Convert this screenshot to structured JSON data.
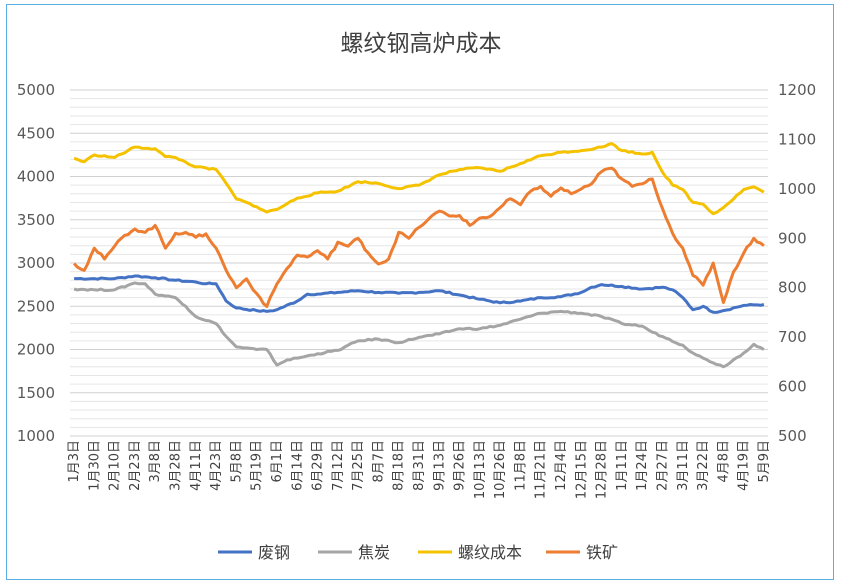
{
  "chart_data": {
    "type": "line",
    "title": "螺纹钢高炉成本",
    "left_axis": {
      "ylim": [
        1000,
        5000
      ],
      "ticks": [
        "5000",
        "4500",
        "4000",
        "3500",
        "3000",
        "2500",
        "2000",
        "1500",
        "1000"
      ]
    },
    "right_axis": {
      "ylim": [
        500,
        1200
      ],
      "ticks": [
        "1200",
        "1100",
        "1000",
        "900",
        "800",
        "700",
        "600",
        "500"
      ]
    },
    "x_labels": [
      "1月3日",
      "1月30日",
      "2月10日",
      "2月23日",
      "3月8日",
      "3月28日",
      "4月11日",
      "4月23日",
      "5月8日",
      "5月19日",
      "6月1日",
      "6月14日",
      "6月29日",
      "7月12日",
      "7月25日",
      "8月7日",
      "8月18日",
      "8月31日",
      "9月13日",
      "9月26日",
      "10月13日",
      "10月26日",
      "11月8日",
      "11月21日",
      "12月4日",
      "12月15日",
      "12月28日",
      "1月11日",
      "1月24日",
      "2月27日",
      "3月11日",
      "3月22日",
      "4月8日",
      "4月19日",
      "5月9日"
    ],
    "legend_position": "bottom",
    "series": [
      {
        "name": "废钢",
        "axis": "left",
        "color": "#4472c4",
        "points": [
          [
            0,
            2820
          ],
          [
            2,
            2820
          ],
          [
            3,
            2850
          ],
          [
            4,
            2830
          ],
          [
            5,
            2800
          ],
          [
            6,
            2780
          ],
          [
            6.5,
            2760
          ],
          [
            7,
            2760
          ],
          [
            7.5,
            2560
          ],
          [
            8,
            2480
          ],
          [
            9,
            2450
          ],
          [
            9.5,
            2440
          ],
          [
            10,
            2460
          ],
          [
            11,
            2560
          ],
          [
            11.5,
            2640
          ],
          [
            12,
            2640
          ],
          [
            13,
            2660
          ],
          [
            14,
            2680
          ],
          [
            15,
            2660
          ],
          [
            16,
            2650
          ],
          [
            17,
            2660
          ],
          [
            18,
            2680
          ],
          [
            19,
            2630
          ],
          [
            20,
            2580
          ],
          [
            21,
            2540
          ],
          [
            22,
            2560
          ],
          [
            23,
            2600
          ],
          [
            24,
            2610
          ],
          [
            25,
            2660
          ],
          [
            25.5,
            2720
          ],
          [
            26,
            2750
          ],
          [
            27,
            2730
          ],
          [
            28,
            2700
          ],
          [
            29,
            2720
          ],
          [
            29.5,
            2690
          ],
          [
            30,
            2600
          ],
          [
            30.5,
            2460
          ],
          [
            31,
            2500
          ],
          [
            31.5,
            2430
          ],
          [
            32,
            2450
          ],
          [
            33,
            2510
          ],
          [
            34,
            2520
          ]
        ]
      },
      {
        "name": "焦炭",
        "axis": "left",
        "color": "#a5a5a5",
        "points": [
          [
            0,
            2700
          ],
          [
            1,
            2690
          ],
          [
            2,
            2690
          ],
          [
            3,
            2770
          ],
          [
            3.5,
            2760
          ],
          [
            4,
            2640
          ],
          [
            5,
            2600
          ],
          [
            5.5,
            2500
          ],
          [
            6,
            2380
          ],
          [
            7,
            2300
          ],
          [
            7.5,
            2150
          ],
          [
            8,
            2030
          ],
          [
            9,
            2000
          ],
          [
            9.5,
            2000
          ],
          [
            10,
            1820
          ],
          [
            10.5,
            1880
          ],
          [
            11,
            1900
          ],
          [
            12,
            1950
          ],
          [
            13,
            1990
          ],
          [
            14,
            2100
          ],
          [
            15,
            2120
          ],
          [
            16,
            2080
          ],
          [
            17,
            2140
          ],
          [
            18,
            2180
          ],
          [
            19,
            2240
          ],
          [
            20,
            2240
          ],
          [
            21,
            2280
          ],
          [
            22,
            2350
          ],
          [
            23,
            2420
          ],
          [
            24,
            2440
          ],
          [
            25,
            2420
          ],
          [
            26,
            2380
          ],
          [
            27,
            2300
          ],
          [
            28,
            2270
          ],
          [
            28.5,
            2200
          ],
          [
            29,
            2150
          ],
          [
            30,
            2050
          ],
          [
            30.5,
            1960
          ],
          [
            31,
            1900
          ],
          [
            32,
            1800
          ],
          [
            33,
            1960
          ],
          [
            33.5,
            2060
          ],
          [
            34,
            2000
          ]
        ]
      },
      {
        "name": "螺纹成本",
        "axis": "left",
        "color": "#f5c200",
        "points": [
          [
            0,
            4210
          ],
          [
            0.5,
            4170
          ],
          [
            1,
            4250
          ],
          [
            2,
            4220
          ],
          [
            3,
            4340
          ],
          [
            4,
            4320
          ],
          [
            4.5,
            4230
          ],
          [
            5,
            4220
          ],
          [
            6,
            4110
          ],
          [
            7,
            4080
          ],
          [
            7.5,
            3920
          ],
          [
            8,
            3740
          ],
          [
            8.5,
            3700
          ],
          [
            9,
            3650
          ],
          [
            9.5,
            3590
          ],
          [
            10,
            3620
          ],
          [
            11,
            3750
          ],
          [
            12,
            3810
          ],
          [
            13,
            3830
          ],
          [
            14,
            3940
          ],
          [
            15,
            3920
          ],
          [
            16,
            3860
          ],
          [
            17,
            3900
          ],
          [
            18,
            4020
          ],
          [
            19,
            4080
          ],
          [
            20,
            4100
          ],
          [
            21,
            4060
          ],
          [
            22,
            4150
          ],
          [
            23,
            4240
          ],
          [
            24,
            4280
          ],
          [
            25,
            4300
          ],
          [
            26,
            4340
          ],
          [
            26.5,
            4380
          ],
          [
            27,
            4300
          ],
          [
            28,
            4260
          ],
          [
            28.5,
            4280
          ],
          [
            29,
            4050
          ],
          [
            29.5,
            3900
          ],
          [
            30,
            3850
          ],
          [
            30.5,
            3700
          ],
          [
            31,
            3680
          ],
          [
            31.5,
            3570
          ],
          [
            32,
            3640
          ],
          [
            33,
            3850
          ],
          [
            33.5,
            3880
          ],
          [
            34,
            3820
          ]
        ]
      },
      {
        "name": "铁矿",
        "axis": "right",
        "color": "#ed7d31",
        "points": [
          [
            0,
            849
          ],
          [
            0.5,
            835
          ],
          [
            1,
            880
          ],
          [
            1.5,
            858
          ],
          [
            2,
            884
          ],
          [
            2.5,
            906
          ],
          [
            3,
            919
          ],
          [
            3.5,
            912
          ],
          [
            4,
            926
          ],
          [
            4.5,
            880
          ],
          [
            5,
            910
          ],
          [
            5.5,
            912
          ],
          [
            6,
            902
          ],
          [
            6.5,
            909
          ],
          [
            7,
            880
          ],
          [
            7.5,
            835
          ],
          [
            8,
            800
          ],
          [
            8.5,
            818
          ],
          [
            9,
            788
          ],
          [
            9.5,
            762
          ],
          [
            10,
            808
          ],
          [
            10.5,
            839
          ],
          [
            11,
            866
          ],
          [
            11.5,
            862
          ],
          [
            12,
            875
          ],
          [
            12.5,
            858
          ],
          [
            13,
            892
          ],
          [
            13.5,
            884
          ],
          [
            14,
            900
          ],
          [
            14.5,
            870
          ],
          [
            15,
            848
          ],
          [
            15.5,
            858
          ],
          [
            16,
            912
          ],
          [
            16.5,
            900
          ],
          [
            17,
            922
          ],
          [
            17.5,
            940
          ],
          [
            18,
            955
          ],
          [
            18.5,
            945
          ],
          [
            19,
            946
          ],
          [
            19.5,
            926
          ],
          [
            20,
            941
          ],
          [
            20.5,
            944
          ],
          [
            21,
            962
          ],
          [
            21.5,
            980
          ],
          [
            22,
            968
          ],
          [
            22.5,
            995
          ],
          [
            23,
            1005
          ],
          [
            23.5,
            985
          ],
          [
            24,
            1002
          ],
          [
            24.5,
            990
          ],
          [
            25,
            1000
          ],
          [
            25.5,
            1010
          ],
          [
            26,
            1035
          ],
          [
            26.5,
            1042
          ],
          [
            27,
            1020
          ],
          [
            27.5,
            1005
          ],
          [
            28,
            1010
          ],
          [
            28.5,
            1020
          ],
          [
            29,
            960
          ],
          [
            29.5,
            910
          ],
          [
            30,
            880
          ],
          [
            30.5,
            825
          ],
          [
            31,
            805
          ],
          [
            31.5,
            850
          ],
          [
            32,
            770
          ],
          [
            32.5,
            832
          ],
          [
            33,
            870
          ],
          [
            33.5,
            900
          ],
          [
            34,
            885
          ]
        ]
      }
    ]
  }
}
